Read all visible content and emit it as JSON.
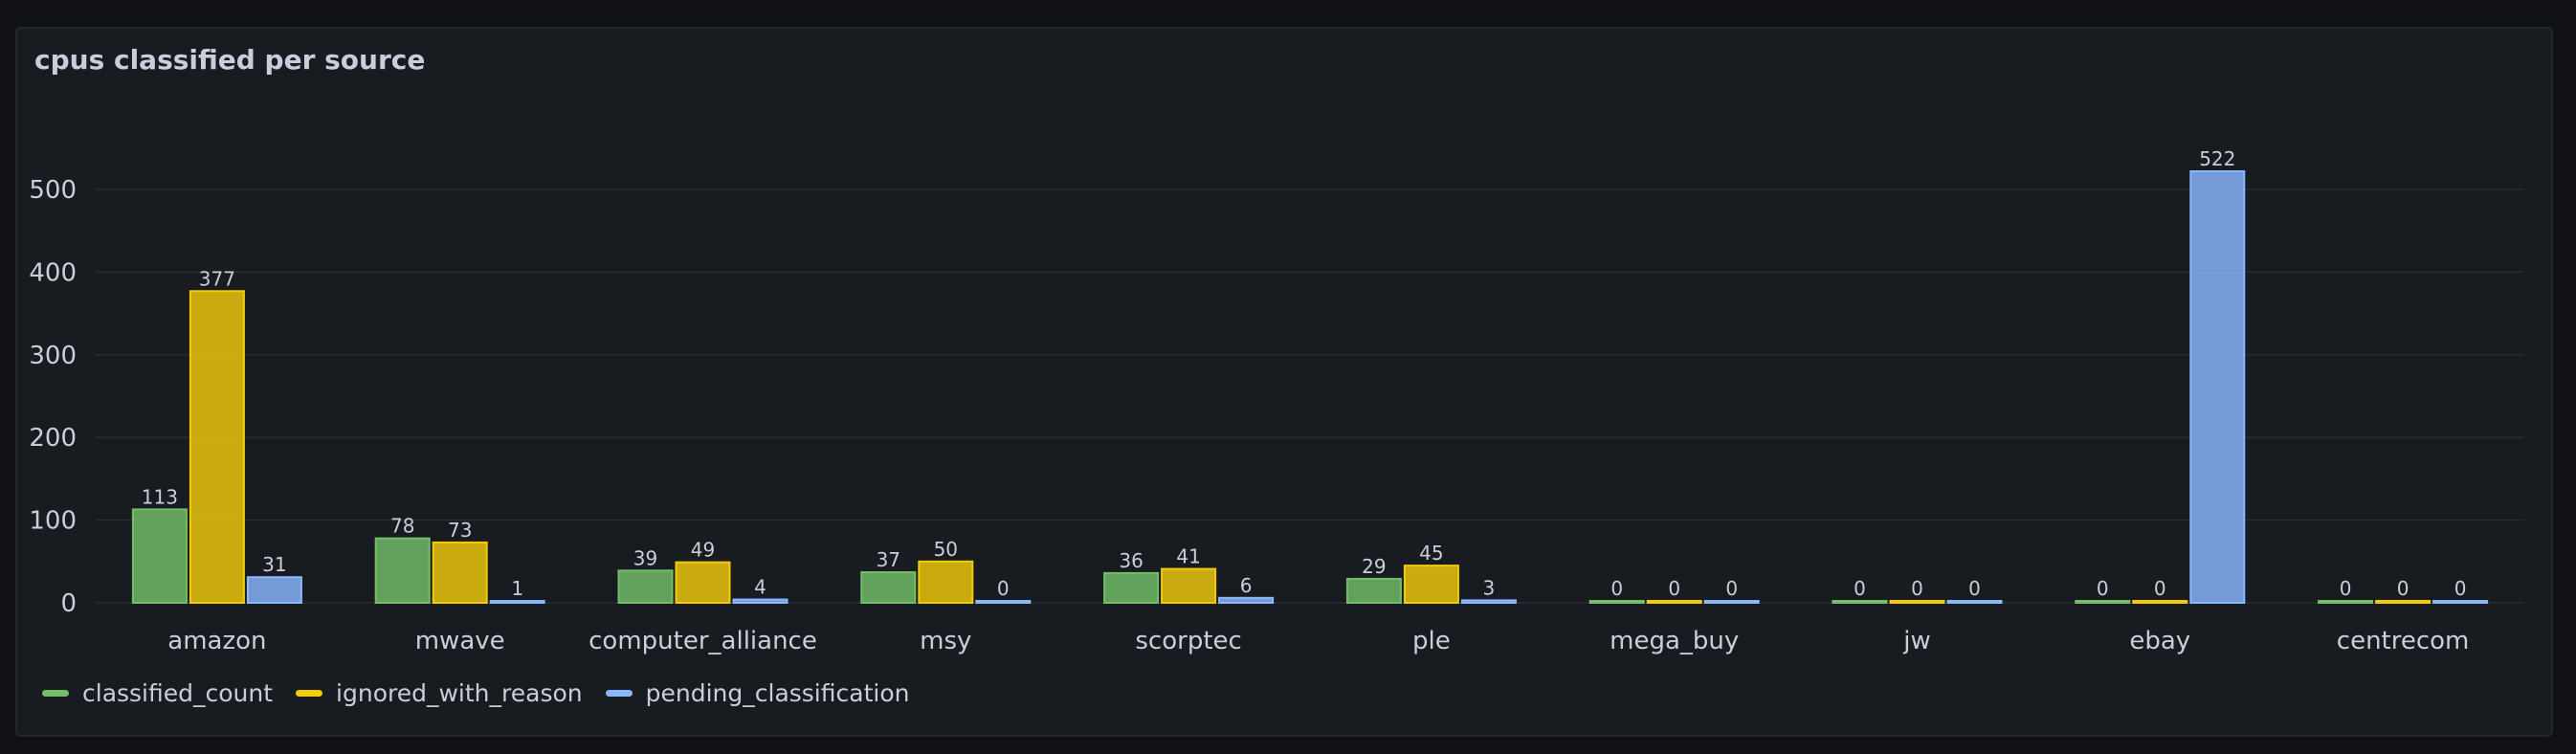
{
  "panel": {
    "title": "cpus classified per source"
  },
  "colors": {
    "classified_count": "#73bf69",
    "ignored_with_reason": "#f2cc0c",
    "pending_classification": "#8ab8ff",
    "grid": "#2a2d33",
    "text": "#ccccdc"
  },
  "chart_data": {
    "type": "bar",
    "title": "cpus classified per source",
    "xlabel": "",
    "ylabel": "",
    "ylim": [
      0,
      560
    ],
    "yticks": [
      0,
      100,
      200,
      300,
      400,
      500
    ],
    "grid": true,
    "legend": "bottom-left",
    "categories": [
      "amazon",
      "mwave",
      "computer_alliance",
      "msy",
      "scorptec",
      "ple",
      "mega_buy",
      "jw",
      "ebay",
      "centrecom"
    ],
    "series": [
      {
        "name": "classified_count",
        "values": [
          113,
          78,
          39,
          37,
          36,
          29,
          0,
          0,
          0,
          0
        ]
      },
      {
        "name": "ignored_with_reason",
        "values": [
          377,
          73,
          49,
          50,
          41,
          45,
          0,
          0,
          0,
          0
        ]
      },
      {
        "name": "pending_classification",
        "values": [
          31,
          1,
          4,
          0,
          6,
          3,
          0,
          0,
          522,
          0
        ]
      }
    ]
  }
}
